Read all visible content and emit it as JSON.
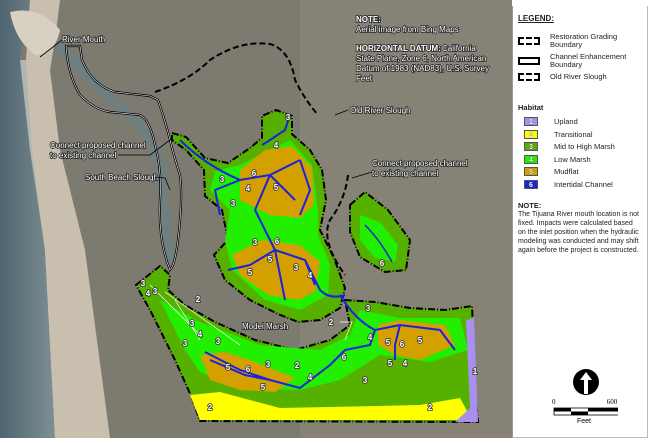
{
  "map": {
    "note_title": "NOTE:",
    "note_text": "Aerial image from Bing Maps",
    "datum_title": "HORIZONTAL DATUM:",
    "datum_lines": [
      "California",
      "State Plane, Zone 6, North American",
      "Datum of 1983 (NAD83), U.S. Survey",
      "Feet"
    ],
    "labels": {
      "river_mouth": "River Mouth",
      "connect_west": [
        "Connect proposed channel",
        "to existing channel"
      ],
      "south_beach_slough": "South Beach Slough",
      "old_river_slough": "Old River Slough",
      "connect_east": [
        "Connect proposed channel",
        "to existing channel"
      ],
      "model_marsh": "Model Marsh"
    }
  },
  "legend": {
    "title": "LEGEND:",
    "lines": [
      {
        "label": "Restoration Grading Boundary",
        "style": "dash-dot"
      },
      {
        "label": "Channel Enhancement Boundary",
        "style": "solid"
      },
      {
        "label": "Old River Slough",
        "style": "dashed"
      }
    ],
    "habitat_title": "Habitat",
    "habitats": [
      {
        "code": "1",
        "label": "Upland",
        "color": "#a98ff0"
      },
      {
        "code": "2",
        "label": "Transitional",
        "color": "#ffff00"
      },
      {
        "code": "3",
        "label": "Mid to High Marsh",
        "color": "#55b000"
      },
      {
        "code": "4",
        "label": "Low Marsh",
        "color": "#22ee00"
      },
      {
        "code": "5",
        "label": "Mudflat",
        "color": "#d4a000"
      },
      {
        "code": "6",
        "label": "Intertidal Channel",
        "color": "#1a22e0"
      }
    ],
    "note_title": "NOTE:",
    "note_text": "The Tijuana River mouth location is not fixed. Impacts were calculated based on the inlet position  when the hydraulic modeling was conducted and may shift again before the project is constructed."
  },
  "scale": {
    "min": "0",
    "max": "600",
    "unit": "Feet",
    "north_icon": "north-arrow-icon"
  }
}
